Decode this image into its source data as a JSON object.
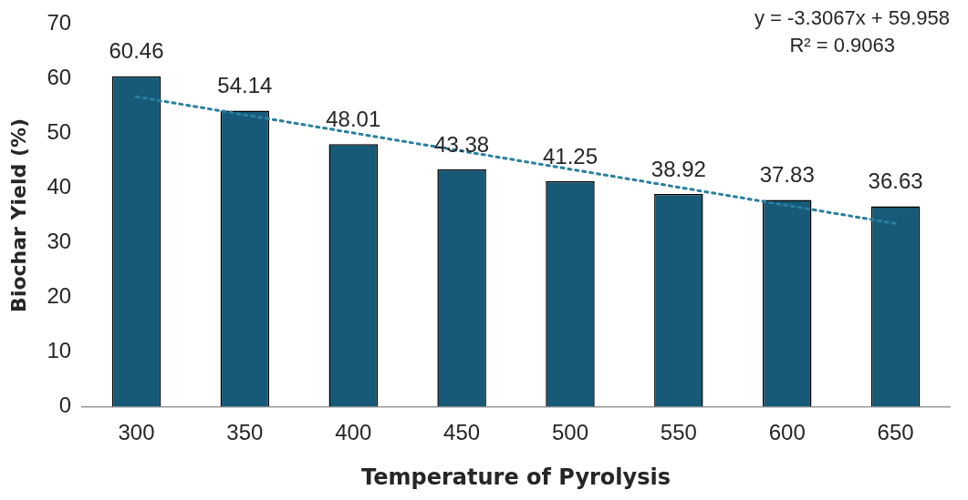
{
  "chart_data": {
    "type": "bar",
    "xlabel": "Temperature of Pyrolysis",
    "ylabel": "Biochar Yield (%)",
    "categories": [
      "300",
      "350",
      "400",
      "450",
      "500",
      "550",
      "600",
      "650"
    ],
    "series": [
      {
        "color": "#165a78",
        "values": [
          60.46,
          54.14,
          48.01,
          43.38,
          41.25,
          38.92,
          37.83,
          36.63
        ],
        "value_labels": [
          "60.46",
          "54.14",
          "48.01",
          "43.38",
          "41.25",
          "38.92",
          "37.83",
          "36.63"
        ]
      },
      {
        "type": "line",
        "color": "#2a7fa0",
        "line_style": "dotted",
        "x": [
          "300",
          "650"
        ],
        "values": [
          56.7,
          33.5
        ]
      }
    ],
    "annotations": [
      "y = -3.3067x + 59.958",
      "R² = 0.9063"
    ],
    "ylim": [
      0,
      70
    ],
    "yticks": [
      0,
      10,
      20,
      30,
      40,
      50,
      60,
      70
    ],
    "grid": false,
    "legend": false,
    "marker": "none"
  }
}
